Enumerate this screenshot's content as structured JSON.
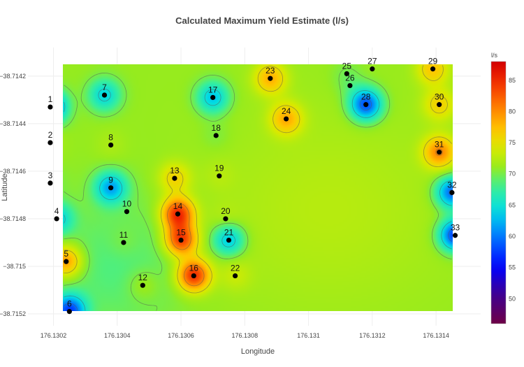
{
  "chart_data": {
    "type": "heatmap",
    "title": "Calculated Maximum Yield Estimate (l/s)",
    "xlabel": "Longitude",
    "ylabel": "Latitude",
    "colorbar_title": "l/s",
    "xlim": [
      176.13019,
      176.13146
    ],
    "ylim": [
      -38.71521,
      -38.71418
    ],
    "xticks": [
      176.1302,
      176.1304,
      176.1306,
      176.1308,
      176.131,
      176.1312,
      176.1314
    ],
    "xtick_labels": [
      "176.1302",
      "176.1304",
      "176.1306",
      "176.1308",
      "176.131",
      "176.1312",
      "176.1314"
    ],
    "yticks": [
      -38.7142,
      -38.7144,
      -38.7146,
      -38.7148,
      -38.715,
      -38.7152
    ],
    "ytick_labels": [
      "−38.7142",
      "−38.7144",
      "−38.7146",
      "−38.7148",
      "−38.715",
      "−38.7152"
    ],
    "colorscale_range": [
      46,
      88
    ],
    "colorbar_ticks": [
      50,
      55,
      60,
      65,
      70,
      75,
      80,
      85
    ],
    "grid": true,
    "background_value": 71,
    "points": [
      {
        "label": "1",
        "x": 176.13019,
        "y": -38.71433,
        "value": 57
      },
      {
        "label": "2",
        "x": 176.13019,
        "y": -38.71448,
        "value": 72
      },
      {
        "label": "3",
        "x": 176.13019,
        "y": -38.71465,
        "value": 70
      },
      {
        "label": "4",
        "x": 176.13021,
        "y": -38.7148,
        "value": 64
      },
      {
        "label": "5",
        "x": 176.13024,
        "y": -38.71498,
        "value": 80
      },
      {
        "label": "6",
        "x": 176.13025,
        "y": -38.71519,
        "value": 58
      },
      {
        "label": "7",
        "x": 176.13036,
        "y": -38.71428,
        "value": 64
      },
      {
        "label": "8",
        "x": 176.13038,
        "y": -38.71449,
        "value": 72
      },
      {
        "label": "9",
        "x": 176.13038,
        "y": -38.71467,
        "value": 62
      },
      {
        "label": "10",
        "x": 176.13043,
        "y": -38.71477,
        "value": 71
      },
      {
        "label": "11",
        "x": 176.13042,
        "y": -38.7149,
        "value": 72
      },
      {
        "label": "12",
        "x": 176.13048,
        "y": -38.71508,
        "value": 73
      },
      {
        "label": "13",
        "x": 176.13058,
        "y": -38.71463,
        "value": 76
      },
      {
        "label": "14",
        "x": 176.13059,
        "y": -38.71478,
        "value": 85
      },
      {
        "label": "15",
        "x": 176.1306,
        "y": -38.71489,
        "value": 84
      },
      {
        "label": "16",
        "x": 176.13064,
        "y": -38.71504,
        "value": 85
      },
      {
        "label": "17",
        "x": 176.1307,
        "y": -38.71429,
        "value": 63
      },
      {
        "label": "18",
        "x": 176.13071,
        "y": -38.71445,
        "value": 70
      },
      {
        "label": "19",
        "x": 176.13072,
        "y": -38.71462,
        "value": 72
      },
      {
        "label": "20",
        "x": 176.13074,
        "y": -38.7148,
        "value": 72
      },
      {
        "label": "21",
        "x": 176.13075,
        "y": -38.71489,
        "value": 63
      },
      {
        "label": "22",
        "x": 176.13077,
        "y": -38.71504,
        "value": 73
      },
      {
        "label": "23",
        "x": 176.13088,
        "y": -38.71421,
        "value": 78
      },
      {
        "label": "24",
        "x": 176.13093,
        "y": -38.71438,
        "value": 78
      },
      {
        "label": "25",
        "x": 176.13112,
        "y": -38.71419,
        "value": 70
      },
      {
        "label": "26",
        "x": 176.13113,
        "y": -38.71424,
        "value": 70
      },
      {
        "label": "27",
        "x": 176.1312,
        "y": -38.71417,
        "value": 71
      },
      {
        "label": "28",
        "x": 176.13118,
        "y": -38.71432,
        "value": 58
      },
      {
        "label": "29",
        "x": 176.13139,
        "y": -38.71417,
        "value": 77
      },
      {
        "label": "30",
        "x": 176.13141,
        "y": -38.71432,
        "value": 76
      },
      {
        "label": "31",
        "x": 176.13141,
        "y": -38.71452,
        "value": 80
      },
      {
        "label": "32",
        "x": 176.13145,
        "y": -38.71469,
        "value": 59
      },
      {
        "label": "33",
        "x": 176.13146,
        "y": -38.71487,
        "value": 57
      }
    ]
  }
}
